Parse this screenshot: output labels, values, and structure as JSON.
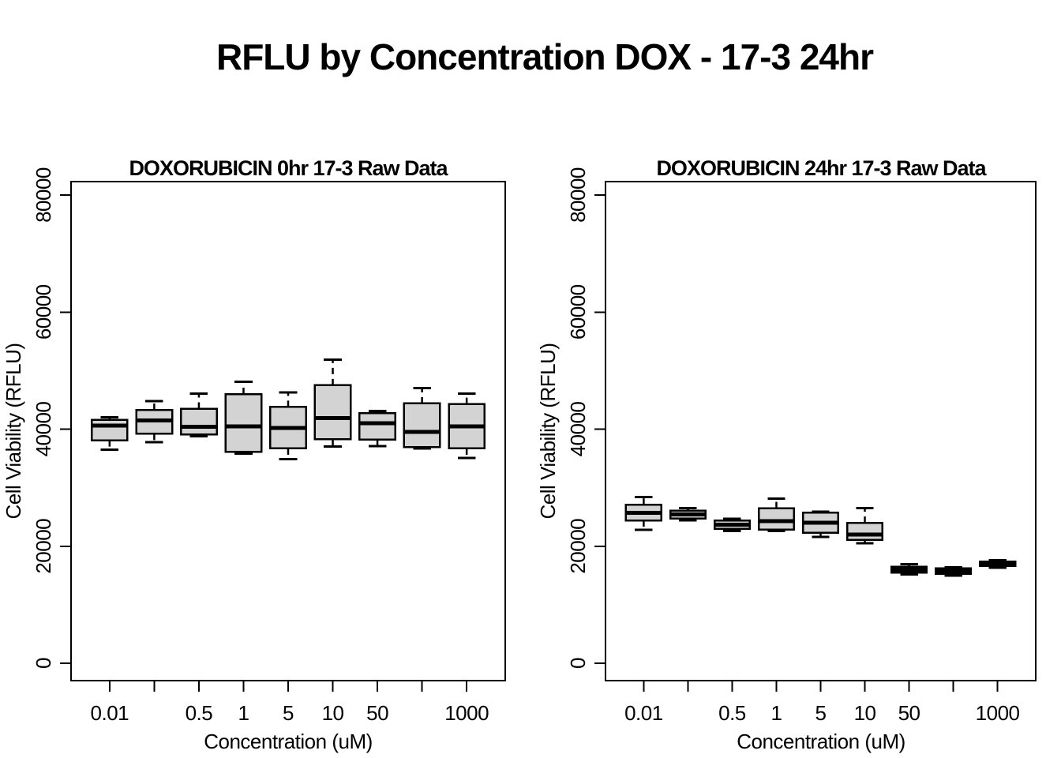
{
  "title": "RFLU by Concentration DOX - 17-3 24hr",
  "chart_data": [
    {
      "type": "boxplot",
      "title": "DOXORUBICIN 0hr 17-3 Raw Data",
      "xlabel": "Concentration (uM)",
      "ylabel": "Cell Viability (RFLU)",
      "ylim": [
        0,
        80000
      ],
      "yticks": [
        0,
        20000,
        40000,
        60000,
        80000
      ],
      "ytick_labels": [
        "0",
        "20000",
        "40000",
        "60000",
        "80000"
      ],
      "xtick_labels": [
        "0.01",
        "",
        "0.5",
        "1",
        "5",
        "10",
        "50",
        "",
        "1000"
      ],
      "grid": false,
      "box_fill": "#d3d3d3",
      "box_stroke": "#000000",
      "series": [
        {
          "label": "0.01",
          "min": 36500,
          "q1": 38100,
          "median": 40600,
          "q3": 41600,
          "max": 42000
        },
        {
          "label": "",
          "min": 37800,
          "q1": 39200,
          "median": 41500,
          "q3": 43300,
          "max": 44800
        },
        {
          "label": "0.5",
          "min": 38800,
          "q1": 39100,
          "median": 40400,
          "q3": 43500,
          "max": 46100
        },
        {
          "label": "1",
          "min": 35800,
          "q1": 36100,
          "median": 40500,
          "q3": 46000,
          "max": 48100
        },
        {
          "label": "5",
          "min": 34900,
          "q1": 36700,
          "median": 40200,
          "q3": 43800,
          "max": 46300
        },
        {
          "label": "10",
          "min": 37000,
          "q1": 38300,
          "median": 41900,
          "q3": 47500,
          "max": 51900
        },
        {
          "label": "50",
          "min": 37100,
          "q1": 38200,
          "median": 41000,
          "q3": 42700,
          "max": 43100
        },
        {
          "label": "",
          "min": 36700,
          "q1": 36900,
          "median": 39500,
          "q3": 44400,
          "max": 47000
        },
        {
          "label": "1000",
          "min": 35100,
          "q1": 36700,
          "median": 40500,
          "q3": 44300,
          "max": 46100
        }
      ]
    },
    {
      "type": "boxplot",
      "title": "DOXORUBICIN 24hr 17-3 Raw Data",
      "xlabel": "Concentration (uM)",
      "ylabel": "Cell Viability (RFLU)",
      "ylim": [
        0,
        80000
      ],
      "yticks": [
        0,
        20000,
        40000,
        60000,
        80000
      ],
      "ytick_labels": [
        "0",
        "20000",
        "40000",
        "60000",
        "80000"
      ],
      "xtick_labels": [
        "0.01",
        "",
        "0.5",
        "1",
        "5",
        "10",
        "50",
        "",
        "1000"
      ],
      "grid": false,
      "box_fill": "#d3d3d3",
      "box_stroke": "#000000",
      "series": [
        {
          "label": "0.01",
          "min": 22800,
          "q1": 24400,
          "median": 25700,
          "q3": 27100,
          "max": 28400
        },
        {
          "label": "",
          "min": 24400,
          "q1": 24700,
          "median": 25400,
          "q3": 26100,
          "max": 26500
        },
        {
          "label": "0.5",
          "min": 22600,
          "q1": 23000,
          "median": 23700,
          "q3": 24400,
          "max": 24700
        },
        {
          "label": "1",
          "min": 22600,
          "q1": 22800,
          "median": 24300,
          "q3": 26500,
          "max": 28100
        },
        {
          "label": "5",
          "min": 21600,
          "q1": 22300,
          "median": 24000,
          "q3": 25700,
          "max": 25900
        },
        {
          "label": "10",
          "min": 20500,
          "q1": 21100,
          "median": 22000,
          "q3": 24000,
          "max": 26500
        },
        {
          "label": "50",
          "min": 15200,
          "q1": 15500,
          "median": 16000,
          "q3": 16500,
          "max": 16900
        },
        {
          "label": "",
          "min": 15000,
          "q1": 15300,
          "median": 15800,
          "q3": 16200,
          "max": 16400
        },
        {
          "label": "1000",
          "min": 16300,
          "q1": 16600,
          "median": 17000,
          "q3": 17400,
          "max": 17600
        }
      ]
    }
  ]
}
